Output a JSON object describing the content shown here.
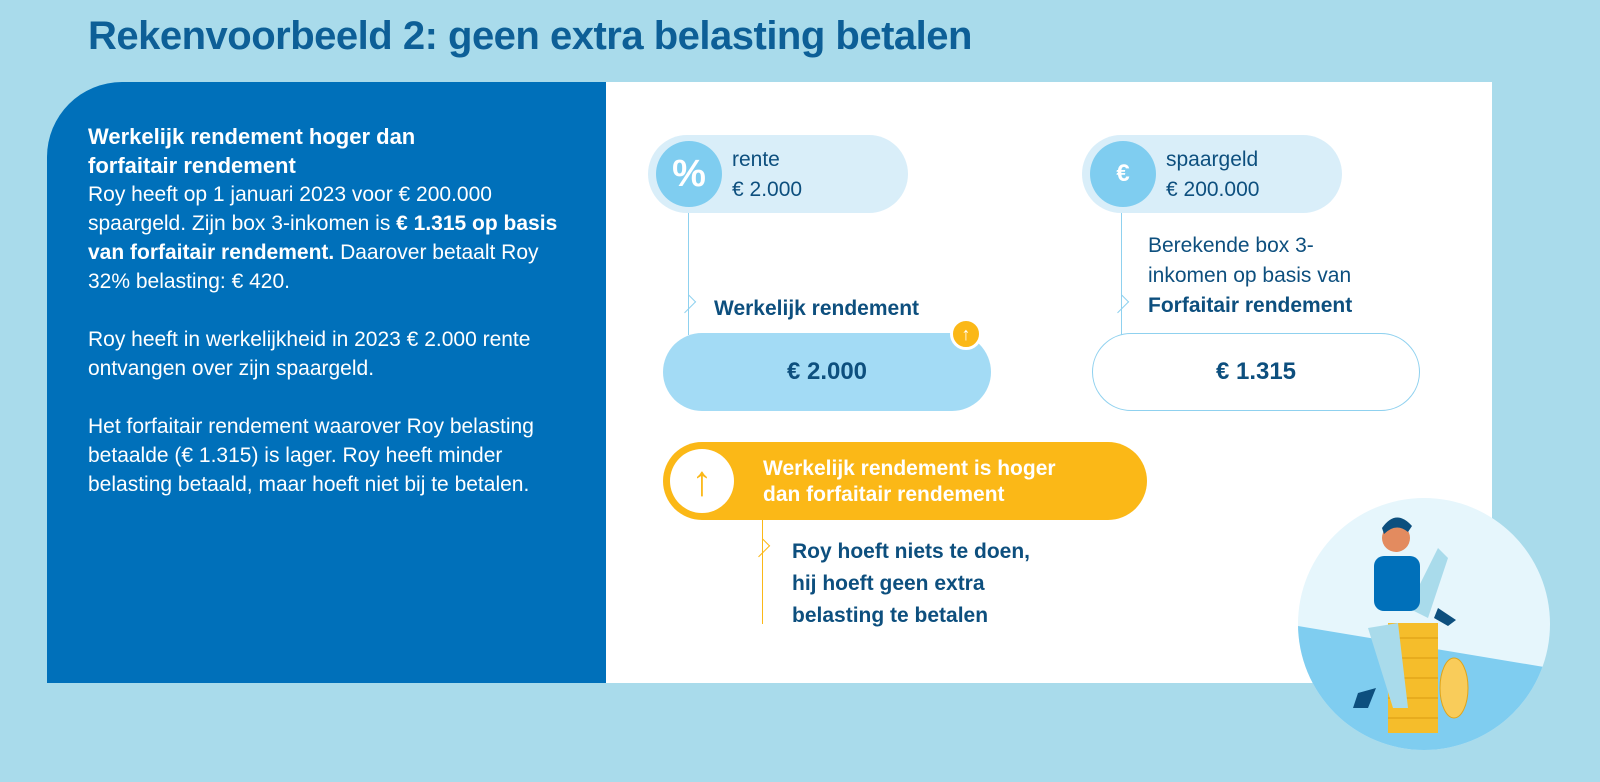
{
  "title": "Rekenvoorbeeld 2: geen extra belasting betalen",
  "left": {
    "heading": "Werkelijk rendement hoger dan forfaitair rendement",
    "p1_a": "Roy heeft op 1 januari 2023 voor € 200.000 spaargeld. Zijn box 3-inkomen is ",
    "p1_bold": "€ 1.315 op basis van forfaitair rendement.",
    "p1_b": " Daarover betaalt Roy 32% belasting: € 420.",
    "p2": "Roy heeft in werkelijkheid in 2023 € 2.000 rente ontvangen over zijn spaargeld.",
    "p3": "Het forfaitair rendement waarover Roy belasting betaalde (€ 1.315) is lager. Roy heeft minder belasting betaald, maar hoeft niet bij te betalen."
  },
  "rente": {
    "label": "rente",
    "amount": "€ 2.000",
    "icon": "percent-coins-icon"
  },
  "spaargeld": {
    "label": "spaargeld",
    "amount": "€ 200.000",
    "icon": "banknotes-icon"
  },
  "werkelijk": {
    "label": "Werkelijk rendement",
    "value": "€ 2.000"
  },
  "forfaitair": {
    "line1": "Berekende box 3-",
    "line2": "inkomen op basis van",
    "line3": "Forfaitair rendement",
    "value": "€ 1.315"
  },
  "result": {
    "line1": "Werkelijk rendement is hoger",
    "line2": "dan forfaitair rendement"
  },
  "conclusion": {
    "line1": "Roy hoeft niets te doen,",
    "line2": "hij hoeft geen extra",
    "line3": "belasting te betalen"
  },
  "colors": {
    "blue": "#0070ba",
    "yellow": "#fbb817",
    "light": "#a9dbeb"
  }
}
